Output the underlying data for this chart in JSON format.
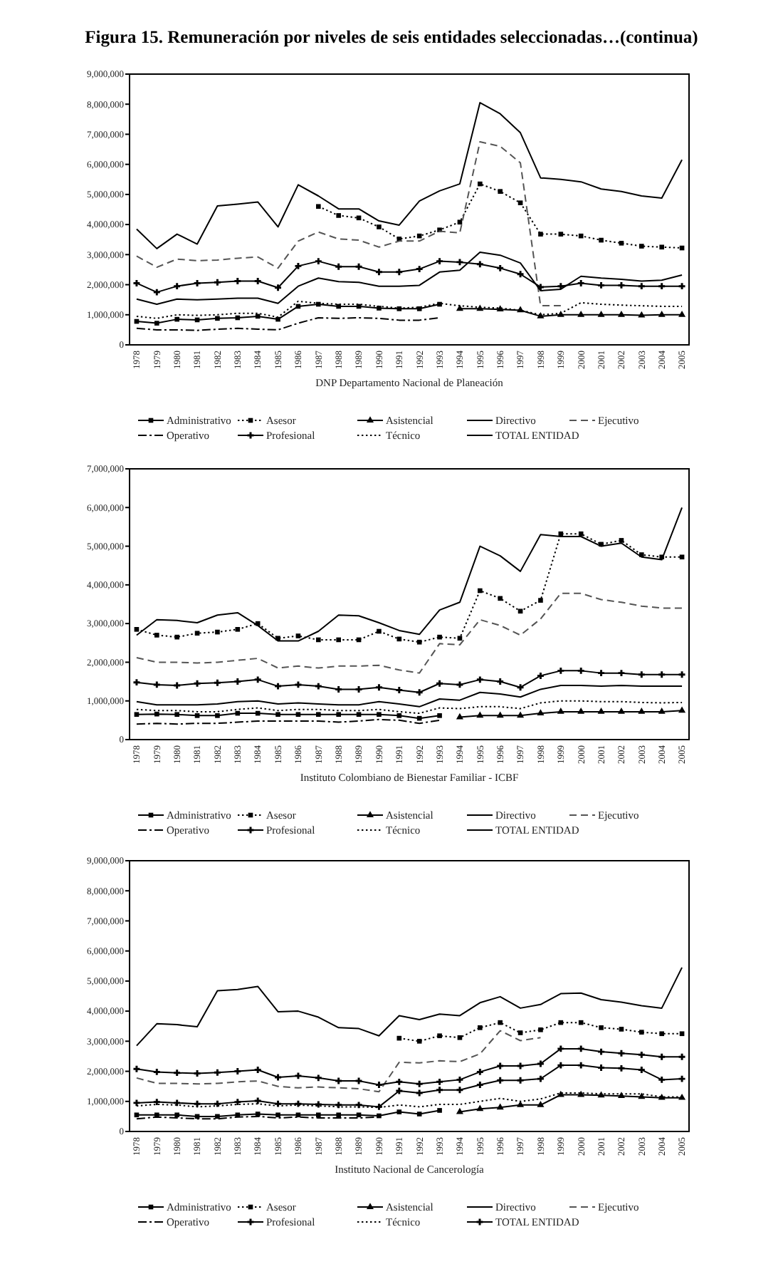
{
  "chart_data": [
    {
      "type": "line",
      "title": "Figura 15. Remuneración por niveles de seis entidades seleccionadas…(continua)",
      "xlabel": "DNP Departamento Nacional de Planeación",
      "legend": "bottom",
      "categories": [
        "1978",
        "1979",
        "1980",
        "1981",
        "1982",
        "1983",
        "1984",
        "1985",
        "1986",
        "1987",
        "1988",
        "1989",
        "1990",
        "1991",
        "1992",
        "1993",
        "1994",
        "1995",
        "1996",
        "1997",
        "1998",
        "1999",
        "2000",
        "2001",
        "2002",
        "2003",
        "2004",
        "2005"
      ],
      "ylim": [
        0,
        9000000
      ],
      "yticks": [
        {
          "value": 0,
          "label": "0"
        },
        {
          "value": 1000000,
          "label": "1,000,000"
        },
        {
          "value": 2000000,
          "label": "2,000,000"
        },
        {
          "value": 3000000,
          "label": "3,000,000"
        },
        {
          "value": 4000000,
          "label": "4,000,000"
        },
        {
          "value": 5000000,
          "label": "5,000,000"
        },
        {
          "value": 6000000,
          "label": "6,000,000"
        },
        {
          "value": 7000000,
          "label": "7,000,000"
        },
        {
          "value": 8000000,
          "label": "8,000,000"
        },
        {
          "value": 9000000,
          "label": "9,000,000"
        }
      ],
      "series": [
        {
          "name": "Administrativo",
          "color": "#000000",
          "line_style": "solid",
          "marker": "square",
          "values": [
            780000,
            720000,
            850000,
            830000,
            880000,
            900000,
            950000,
            850000,
            1280000,
            1350000,
            1280000,
            1280000,
            1220000,
            1200000,
            1200000,
            1350000,
            null,
            null,
            null,
            null,
            null,
            null,
            null,
            null,
            null,
            null,
            null,
            null
          ]
        },
        {
          "name": "Asesor",
          "color": "#000000",
          "line_style": "dotted",
          "marker": "square",
          "values": [
            null,
            null,
            null,
            null,
            null,
            null,
            null,
            null,
            null,
            4600000,
            4300000,
            4220000,
            3920000,
            3520000,
            3620000,
            3820000,
            4080000,
            5350000,
            5100000,
            4720000,
            3680000,
            3680000,
            3620000,
            3480000,
            3380000,
            3280000,
            3250000,
            3220000
          ]
        },
        {
          "name": "Asistencial",
          "color": "#000000",
          "line_style": "solid",
          "marker": "triangle",
          "values": [
            null,
            null,
            null,
            null,
            null,
            null,
            null,
            null,
            null,
            null,
            null,
            null,
            null,
            null,
            null,
            null,
            1200000,
            1200000,
            1180000,
            1150000,
            950000,
            1000000,
            1000000,
            1000000,
            1000000,
            980000,
            1000000,
            1000000
          ]
        },
        {
          "name": "Directivo",
          "color": "#000000",
          "line_style": "solid",
          "values": [
            3850000,
            3200000,
            3680000,
            3350000,
            4620000,
            4680000,
            4750000,
            3920000,
            5320000,
            4950000,
            4520000,
            4520000,
            4120000,
            3980000,
            4780000,
            5120000,
            5350000,
            8050000,
            7680000,
            7050000,
            5550000,
            5500000,
            5420000,
            5180000,
            5100000,
            4950000,
            4880000,
            6150000
          ]
        },
        {
          "name": "Ejecutivo",
          "color": "#555555",
          "line_style": "dashed",
          "values": [
            2950000,
            2580000,
            2850000,
            2800000,
            2820000,
            2880000,
            2920000,
            2550000,
            3450000,
            3750000,
            3520000,
            3480000,
            3250000,
            3450000,
            3450000,
            3780000,
            3720000,
            6750000,
            6600000,
            6050000,
            1300000,
            1300000,
            null,
            null,
            null,
            null,
            null,
            null
          ]
        },
        {
          "name": "Operativo",
          "color": "#000000",
          "line_style": "dashdot",
          "values": [
            550000,
            500000,
            500000,
            480000,
            520000,
            550000,
            520000,
            500000,
            720000,
            900000,
            880000,
            900000,
            880000,
            820000,
            820000,
            900000,
            null,
            null,
            null,
            null,
            null,
            null,
            null,
            null,
            null,
            null,
            null,
            null
          ]
        },
        {
          "name": "Profesional",
          "color": "#000000",
          "line_style": "solid",
          "marker": "cross",
          "values": [
            2050000,
            1750000,
            1950000,
            2050000,
            2080000,
            2120000,
            2120000,
            1900000,
            2620000,
            2780000,
            2600000,
            2600000,
            2420000,
            2420000,
            2520000,
            2780000,
            2750000,
            2680000,
            2550000,
            2350000,
            1920000,
            1950000,
            2050000,
            1980000,
            1980000,
            1950000,
            1950000,
            1950000
          ]
        },
        {
          "name": "Técnico",
          "color": "#000000",
          "line_style": "dotted",
          "values": [
            950000,
            880000,
            1000000,
            980000,
            1000000,
            1050000,
            1050000,
            920000,
            1450000,
            1380000,
            1350000,
            1350000,
            1280000,
            1220000,
            1250000,
            1380000,
            1300000,
            1250000,
            1220000,
            1150000,
            1000000,
            1050000,
            1400000,
            1350000,
            1320000,
            1300000,
            1280000,
            1280000
          ]
        },
        {
          "name": "TOTAL ENTIDAD",
          "color": "#000000",
          "line_style": "solid",
          "values": [
            1520000,
            1350000,
            1520000,
            1500000,
            1520000,
            1550000,
            1550000,
            1380000,
            1950000,
            2220000,
            2100000,
            2080000,
            1950000,
            1950000,
            1980000,
            2420000,
            2480000,
            3080000,
            2980000,
            2720000,
            1800000,
            1850000,
            2280000,
            2220000,
            2180000,
            2120000,
            2150000,
            2320000
          ]
        }
      ]
    },
    {
      "type": "line",
      "xlabel": "Instituto Colombiano de Bienestar Familiar - ICBF",
      "legend": "bottom",
      "categories": [
        "1978",
        "1979",
        "1980",
        "1981",
        "1982",
        "1983",
        "1984",
        "1985",
        "1986",
        "1987",
        "1988",
        "1989",
        "1990",
        "1991",
        "1992",
        "1993",
        "1994",
        "1995",
        "1996",
        "1997",
        "1998",
        "1999",
        "2000",
        "2001",
        "2002",
        "2003",
        "2004",
        "2005"
      ],
      "ylim": [
        0,
        7000000
      ],
      "yticks": [
        {
          "value": 0,
          "label": "0"
        },
        {
          "value": 1000000,
          "label": "1,000,000"
        },
        {
          "value": 2000000,
          "label": "2,000,000"
        },
        {
          "value": 3000000,
          "label": "3,000,000"
        },
        {
          "value": 4000000,
          "label": "4,000,000"
        },
        {
          "value": 5000000,
          "label": "5,000,000"
        },
        {
          "value": 6000000,
          "label": "6,000,000"
        },
        {
          "value": 7000000,
          "label": "7,000,000"
        }
      ],
      "series": [
        {
          "name": "Administrativo",
          "color": "#000000",
          "line_style": "solid",
          "marker": "square",
          "values": [
            650000,
            660000,
            650000,
            620000,
            620000,
            680000,
            680000,
            650000,
            650000,
            650000,
            650000,
            650000,
            650000,
            620000,
            550000,
            620000,
            null,
            null,
            null,
            null,
            null,
            null,
            null,
            null,
            null,
            null,
            null,
            null
          ]
        },
        {
          "name": "Asesor",
          "color": "#000000",
          "line_style": "dotted",
          "marker": "square",
          "values": [
            2850000,
            2700000,
            2650000,
            2750000,
            2780000,
            2850000,
            3000000,
            2620000,
            2680000,
            2580000,
            2580000,
            2580000,
            2800000,
            2600000,
            2520000,
            2650000,
            2620000,
            3850000,
            3650000,
            3320000,
            3600000,
            5320000,
            5320000,
            5050000,
            5150000,
            4780000,
            4720000,
            4720000
          ]
        },
        {
          "name": "Asistencial",
          "color": "#000000",
          "line_style": "solid",
          "marker": "triangle",
          "values": [
            null,
            null,
            null,
            null,
            null,
            null,
            null,
            null,
            null,
            null,
            null,
            null,
            null,
            null,
            null,
            null,
            580000,
            620000,
            620000,
            620000,
            680000,
            720000,
            720000,
            720000,
            720000,
            720000,
            720000,
            750000
          ]
        },
        {
          "name": "Directivo",
          "color": "#000000",
          "line_style": "solid",
          "values": [
            2700000,
            3100000,
            3080000,
            3020000,
            3220000,
            3280000,
            2950000,
            2550000,
            2550000,
            2800000,
            3220000,
            3200000,
            3020000,
            2820000,
            2720000,
            3350000,
            3550000,
            5000000,
            4750000,
            4350000,
            5300000,
            5250000,
            5250000,
            5000000,
            5080000,
            4720000,
            4650000,
            6000000
          ]
        },
        {
          "name": "Ejecutivo",
          "color": "#555555",
          "line_style": "dashed",
          "values": [
            2120000,
            2000000,
            2000000,
            1980000,
            2000000,
            2050000,
            2100000,
            1850000,
            1900000,
            1850000,
            1900000,
            1900000,
            1920000,
            1800000,
            1720000,
            2480000,
            2450000,
            3100000,
            2950000,
            2700000,
            3120000,
            3780000,
            3780000,
            3620000,
            3550000,
            3450000,
            3400000,
            3400000
          ]
        },
        {
          "name": "Operativo",
          "color": "#000000",
          "line_style": "dashdot",
          "values": [
            400000,
            420000,
            400000,
            420000,
            420000,
            450000,
            480000,
            480000,
            480000,
            480000,
            450000,
            480000,
            520000,
            500000,
            420000,
            500000,
            null,
            null,
            null,
            null,
            null,
            null,
            null,
            null,
            null,
            null,
            null,
            null
          ]
        },
        {
          "name": "Profesional",
          "color": "#000000",
          "line_style": "solid",
          "marker": "cross",
          "values": [
            1480000,
            1420000,
            1400000,
            1450000,
            1470000,
            1500000,
            1550000,
            1380000,
            1420000,
            1380000,
            1300000,
            1300000,
            1350000,
            1280000,
            1220000,
            1450000,
            1420000,
            1550000,
            1500000,
            1350000,
            1650000,
            1780000,
            1780000,
            1720000,
            1720000,
            1680000,
            1680000,
            1680000
          ]
        },
        {
          "name": "Técnico",
          "color": "#000000",
          "line_style": "dotted",
          "values": [
            780000,
            750000,
            750000,
            720000,
            720000,
            780000,
            820000,
            750000,
            780000,
            780000,
            750000,
            750000,
            780000,
            720000,
            680000,
            820000,
            800000,
            850000,
            850000,
            800000,
            950000,
            1000000,
            1000000,
            980000,
            980000,
            960000,
            950000,
            960000
          ]
        },
        {
          "name": "TOTAL ENTIDAD",
          "color": "#000000",
          "line_style": "solid",
          "values": [
            980000,
            900000,
            900000,
            900000,
            920000,
            980000,
            1000000,
            920000,
            950000,
            920000,
            900000,
            900000,
            980000,
            920000,
            850000,
            1050000,
            1020000,
            1220000,
            1180000,
            1100000,
            1300000,
            1400000,
            1400000,
            1380000,
            1400000,
            1380000,
            1380000,
            1380000
          ]
        }
      ]
    },
    {
      "type": "line",
      "xlabel": "Instituto Nacional de Cancerología",
      "legend": "bottom",
      "categories": [
        "1978",
        "1979",
        "1980",
        "1981",
        "1982",
        "1983",
        "1984",
        "1985",
        "1986",
        "1987",
        "1988",
        "1989",
        "1990",
        "1991",
        "1992",
        "1993",
        "1994",
        "1995",
        "1996",
        "1997",
        "1998",
        "1999",
        "2000",
        "2001",
        "2002",
        "2003",
        "2004",
        "2005"
      ],
      "ylim": [
        0,
        9000000
      ],
      "yticks": [
        {
          "value": 0,
          "label": "0"
        },
        {
          "value": 1000000,
          "label": "1,000,000"
        },
        {
          "value": 2000000,
          "label": "2,000,000"
        },
        {
          "value": 3000000,
          "label": "3,000,000"
        },
        {
          "value": 4000000,
          "label": "4,000,000"
        },
        {
          "value": 5000000,
          "label": "5,000,000"
        },
        {
          "value": 6000000,
          "label": "6,000,000"
        },
        {
          "value": 7000000,
          "label": "7,000,000"
        },
        {
          "value": 8000000,
          "label": "8,000,000"
        },
        {
          "value": 9000000,
          "label": "9,000,000"
        }
      ],
      "series": [
        {
          "name": "Administrativo",
          "color": "#000000",
          "line_style": "solid",
          "marker": "square",
          "values": [
            550000,
            550000,
            550000,
            500000,
            500000,
            550000,
            580000,
            550000,
            550000,
            550000,
            550000,
            550000,
            520000,
            650000,
            580000,
            700000,
            null,
            null,
            null,
            null,
            null,
            null,
            null,
            null,
            null,
            null,
            null,
            null
          ]
        },
        {
          "name": "Asesor",
          "color": "#000000",
          "line_style": "dotted",
          "marker": "square",
          "values": [
            null,
            null,
            null,
            null,
            null,
            null,
            null,
            null,
            null,
            null,
            null,
            null,
            null,
            3100000,
            3000000,
            3180000,
            3120000,
            3450000,
            3620000,
            3280000,
            3380000,
            3620000,
            3620000,
            3450000,
            3400000,
            3300000,
            3250000,
            3250000
          ]
        },
        {
          "name": "Asistencial",
          "color": "#000000",
          "line_style": "solid",
          "marker": "triangle",
          "values": [
            null,
            null,
            null,
            null,
            null,
            null,
            null,
            null,
            null,
            null,
            null,
            null,
            null,
            null,
            null,
            null,
            650000,
            750000,
            800000,
            880000,
            880000,
            1220000,
            1220000,
            1200000,
            1180000,
            1150000,
            1120000,
            1120000
          ]
        },
        {
          "name": "Directivo",
          "color": "#000000",
          "line_style": "solid",
          "values": [
            2850000,
            3580000,
            3550000,
            3480000,
            4680000,
            4720000,
            4820000,
            3980000,
            4000000,
            3800000,
            3450000,
            3420000,
            3180000,
            3850000,
            3720000,
            3900000,
            3850000,
            4280000,
            4480000,
            4100000,
            4220000,
            4580000,
            4600000,
            4380000,
            4300000,
            4180000,
            4100000,
            5450000
          ]
        },
        {
          "name": "Ejecutivo",
          "color": "#555555",
          "line_style": "dashed",
          "values": [
            1780000,
            1600000,
            1600000,
            1580000,
            1600000,
            1650000,
            1680000,
            1500000,
            1450000,
            1480000,
            1450000,
            1420000,
            1320000,
            2300000,
            2280000,
            2350000,
            2320000,
            2580000,
            3350000,
            3020000,
            3120000,
            null,
            null,
            null,
            null,
            null,
            null,
            null
          ]
        },
        {
          "name": "Operativo",
          "color": "#000000",
          "line_style": "dashdot",
          "values": [
            420000,
            480000,
            450000,
            420000,
            420000,
            480000,
            500000,
            450000,
            480000,
            450000,
            450000,
            450000,
            480000,
            null,
            null,
            null,
            null,
            null,
            null,
            null,
            null,
            null,
            null,
            null,
            null,
            null,
            null,
            null
          ]
        },
        {
          "name": "Profesional",
          "color": "#000000",
          "line_style": "solid",
          "marker": "cross",
          "values": [
            2080000,
            1980000,
            1950000,
            1930000,
            1960000,
            2000000,
            2050000,
            1800000,
            1850000,
            1780000,
            1680000,
            1680000,
            1550000,
            1650000,
            1580000,
            1650000,
            1720000,
            1980000,
            2180000,
            2180000,
            2250000,
            2750000,
            2750000,
            2650000,
            2600000,
            2550000,
            2480000,
            2480000
          ]
        },
        {
          "name": "Técnico",
          "color": "#000000",
          "line_style": "dotted",
          "values": [
            850000,
            900000,
            880000,
            820000,
            850000,
            900000,
            920000,
            850000,
            880000,
            850000,
            820000,
            820000,
            800000,
            880000,
            820000,
            900000,
            900000,
            1000000,
            1100000,
            1000000,
            1080000,
            1280000,
            1280000,
            1250000,
            1250000,
            1250000,
            1150000,
            1150000
          ]
        },
        {
          "name": "TOTAL ENTIDAD",
          "color": "#000000",
          "line_style": "solid",
          "marker": "cross",
          "values": [
            950000,
            980000,
            950000,
            920000,
            920000,
            980000,
            1020000,
            920000,
            920000,
            900000,
            880000,
            880000,
            820000,
            1350000,
            1280000,
            1380000,
            1380000,
            1550000,
            1700000,
            1700000,
            1750000,
            2200000,
            2200000,
            2120000,
            2100000,
            2050000,
            1720000,
            1750000
          ]
        }
      ]
    }
  ]
}
